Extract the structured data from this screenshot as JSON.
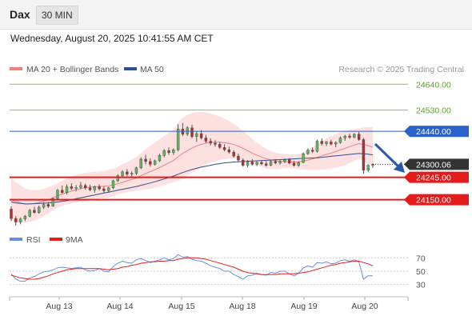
{
  "header": {
    "symbol": "Dax",
    "timeframe": "30 MIN",
    "datetime": "Wednesday, August 20, 2025 10:41:55 AM CET"
  },
  "colors": {
    "price_line": "#2a62c9",
    "resistance": "#86c25a",
    "support": "#e31b1b",
    "current": "#333333",
    "ma20": "#f08080",
    "ma50": "#2f4f8f",
    "bb_fill": "#fde0e0",
    "up_candle": "#5cb85c",
    "down_candle": "#b03030",
    "rsi": "#6a8fe0",
    "rsi_ma": "#e02020",
    "arrow": "#2a5aa8"
  },
  "chart_data": [
    {
      "type": "candlestick",
      "legend": [
        {
          "name": "MA 20 + Bollinger Bands",
          "color": "#f08080"
        },
        {
          "name": "MA 50",
          "color": "#2f4f8f"
        }
      ],
      "watermark": "Research © 2025 Trading Central",
      "x_ticks": [
        "Aug 13",
        "Aug 14",
        "Aug 15",
        "Aug 18",
        "Aug 19",
        "Aug 20"
      ],
      "ylim": [
        24040,
        24685
      ],
      "levels": [
        {
          "label": "24640.00",
          "value": 24640,
          "kind": "resistance"
        },
        {
          "label": "24530.00",
          "value": 24530,
          "kind": "resistance"
        },
        {
          "label": "24440.00",
          "value": 24440,
          "kind": "price"
        },
        {
          "label": "24300.06",
          "value": 24300.06,
          "kind": "current"
        },
        {
          "label": "24245.00",
          "value": 24245,
          "kind": "support"
        },
        {
          "label": "24150.00",
          "value": 24150,
          "kind": "support"
        }
      ],
      "ohlc": [
        [
          24110,
          24122,
          24060,
          24070
        ],
        [
          24070,
          24080,
          24040,
          24055
        ],
        [
          24055,
          24075,
          24045,
          24068
        ],
        [
          24068,
          24085,
          24060,
          24080
        ],
        [
          24080,
          24110,
          24075,
          24105
        ],
        [
          24105,
          24120,
          24090,
          24095
        ],
        [
          24095,
          24125,
          24090,
          24118
        ],
        [
          24118,
          24140,
          24110,
          24130
        ],
        [
          24130,
          24140,
          24115,
          24122
        ],
        [
          24122,
          24160,
          24120,
          24155
        ],
        [
          24155,
          24195,
          24150,
          24190
        ],
        [
          24190,
          24210,
          24175,
          24180
        ],
        [
          24180,
          24215,
          24172,
          24205
        ],
        [
          24205,
          24220,
          24190,
          24198
        ],
        [
          24198,
          24212,
          24185,
          24202
        ],
        [
          24202,
          24225,
          24195,
          24210
        ],
        [
          24210,
          24218,
          24192,
          24200
        ],
        [
          24200,
          24214,
          24186,
          24192
        ],
        [
          24192,
          24210,
          24180,
          24205
        ],
        [
          24205,
          24215,
          24190,
          24196
        ],
        [
          24196,
          24206,
          24180,
          24188
        ],
        [
          24188,
          24205,
          24180,
          24200
        ],
        [
          24200,
          24235,
          24195,
          24230
        ],
        [
          24230,
          24258,
          24225,
          24252
        ],
        [
          24252,
          24275,
          24242,
          24268
        ],
        [
          24268,
          24280,
          24250,
          24258
        ],
        [
          24258,
          24270,
          24245,
          24262
        ],
        [
          24262,
          24290,
          24255,
          24285
        ],
        [
          24285,
          24330,
          24280,
          24322
        ],
        [
          24322,
          24340,
          24300,
          24312
        ],
        [
          24312,
          24325,
          24290,
          24300
        ],
        [
          24300,
          24320,
          24295,
          24315
        ],
        [
          24315,
          24345,
          24310,
          24338
        ],
        [
          24338,
          24365,
          24330,
          24358
        ],
        [
          24358,
          24372,
          24340,
          24350
        ],
        [
          24350,
          24368,
          24340,
          24362
        ],
        [
          24362,
          24470,
          24355,
          24450
        ],
        [
          24450,
          24475,
          24420,
          24428
        ],
        [
          24428,
          24462,
          24420,
          24455
        ],
        [
          24455,
          24468,
          24410,
          24418
        ],
        [
          24418,
          24440,
          24395,
          24430
        ],
        [
          24430,
          24445,
          24405,
          24412
        ],
        [
          24412,
          24425,
          24390,
          24398
        ],
        [
          24398,
          24410,
          24380,
          24390
        ],
        [
          24390,
          24402,
          24375,
          24385
        ],
        [
          24385,
          24395,
          24365,
          24372
        ],
        [
          24372,
          24385,
          24355,
          24362
        ],
        [
          24362,
          24375,
          24345,
          24352
        ],
        [
          24352,
          24360,
          24328,
          24335
        ],
        [
          24335,
          24345,
          24310,
          24318
        ],
        [
          24318,
          24325,
          24290,
          24296
        ],
        [
          24296,
          24318,
          24288,
          24310
        ],
        [
          24310,
          24322,
          24295,
          24300
        ],
        [
          24300,
          24316,
          24292,
          24308
        ],
        [
          24308,
          24318,
          24296,
          24302
        ],
        [
          24302,
          24314,
          24290,
          24296
        ],
        [
          24296,
          24318,
          24292,
          24312
        ],
        [
          24312,
          24322,
          24300,
          24306
        ],
        [
          24306,
          24318,
          24298,
          24312
        ],
        [
          24312,
          24325,
          24305,
          24320
        ],
        [
          24320,
          24326,
          24300,
          24305
        ],
        [
          24305,
          24315,
          24290,
          24296
        ],
        [
          24296,
          24312,
          24290,
          24308
        ],
        [
          24308,
          24350,
          24305,
          24345
        ],
        [
          24345,
          24368,
          24340,
          24360
        ],
        [
          24360,
          24372,
          24348,
          24355
        ],
        [
          24355,
          24405,
          24350,
          24398
        ],
        [
          24398,
          24410,
          24380,
          24388
        ],
        [
          24388,
          24400,
          24378,
          24395
        ],
        [
          24395,
          24405,
          24380,
          24386
        ],
        [
          24386,
          24398,
          24372,
          24392
        ],
        [
          24392,
          24418,
          24388,
          24412
        ],
        [
          24412,
          24425,
          24400,
          24420
        ],
        [
          24420,
          24430,
          24408,
          24415
        ],
        [
          24415,
          24432,
          24410,
          24428
        ],
        [
          24428,
          24438,
          24400,
          24405
        ],
        [
          24405,
          24412,
          24260,
          24275
        ],
        [
          24275,
          24300,
          24268,
          24296
        ],
        [
          24296,
          24305,
          24285,
          24300
        ]
      ],
      "ma20": [
        24150,
        24142,
        24136,
        24132,
        24132,
        24134,
        24138,
        24144,
        24150,
        24158,
        24166,
        24173,
        24180,
        24186,
        24192,
        24197,
        24201,
        24203,
        24205,
        24206,
        24207,
        24209,
        24213,
        24218,
        24224,
        24230,
        24236,
        24243,
        24252,
        24261,
        24269,
        24277,
        24286,
        24296,
        24306,
        24316,
        24332,
        24346,
        24358,
        24369,
        24378,
        24385,
        24390,
        24393,
        24394,
        24394,
        24392,
        24389,
        24384,
        24377,
        24368,
        24358,
        24348,
        24339,
        24331,
        24324,
        24319,
        24315,
        24313,
        24312,
        24311,
        24310,
        24311,
        24314,
        24318,
        24323,
        24330,
        24336,
        24342,
        24348,
        24354,
        24361,
        24368,
        24375,
        24382,
        24388,
        24384,
        24379,
        24372
      ],
      "bb_upper": [
        24240,
        24225,
        24210,
        24198,
        24192,
        24190,
        24192,
        24196,
        24202,
        24210,
        24220,
        24230,
        24240,
        24248,
        24255,
        24260,
        24264,
        24266,
        24268,
        24270,
        24272,
        24276,
        24282,
        24290,
        24300,
        24310,
        24320,
        24332,
        24348,
        24364,
        24378,
        24392,
        24406,
        24420,
        24434,
        24446,
        24478,
        24498,
        24510,
        24518,
        24522,
        24522,
        24520,
        24516,
        24510,
        24502,
        24494,
        24484,
        24472,
        24458,
        24442,
        24425,
        24408,
        24392,
        24378,
        24366,
        24356,
        24350,
        24346,
        24344,
        24342,
        24342,
        24344,
        24350,
        24360,
        24372,
        24386,
        24398,
        24410,
        24420,
        24428,
        24436,
        24442,
        24446,
        24450,
        24452,
        24456,
        24458,
        24458
      ],
      "bb_lower": [
        24060,
        24055,
        24052,
        24052,
        24056,
        24062,
        24070,
        24080,
        24092,
        24106,
        24116,
        24124,
        24130,
        24134,
        24138,
        24142,
        24146,
        24150,
        24152,
        24154,
        24156,
        24160,
        24166,
        24172,
        24178,
        24182,
        24186,
        24190,
        24192,
        24194,
        24196,
        24200,
        24206,
        24212,
        24218,
        24224,
        24230,
        24240,
        24252,
        24264,
        24276,
        24288,
        24298,
        24306,
        24312,
        24318,
        24322,
        24324,
        24324,
        24322,
        24318,
        24312,
        24304,
        24296,
        24288,
        24282,
        24280,
        24280,
        24282,
        24284,
        24284,
        24282,
        24280,
        24278,
        24276,
        24276,
        24276,
        24278,
        24280,
        24282,
        24286,
        24290,
        24296,
        24304,
        24314,
        24324,
        24312,
        24300,
        24286
      ],
      "ma50": [
        24140,
        24136,
        24134,
        24132,
        24132,
        24133,
        24134,
        24135,
        24136,
        24138,
        24140,
        24143,
        24146,
        24150,
        24154,
        24158,
        24162,
        24166,
        24170,
        24174,
        24178,
        24182,
        24186,
        24190,
        24194,
        24198,
        24202,
        24206,
        24211,
        24216,
        24221,
        24226,
        24232,
        24238,
        24244,
        24250,
        24258,
        24265,
        24272,
        24278,
        24283,
        24288,
        24292,
        24296,
        24300,
        24303,
        24306,
        24308,
        24310,
        24311,
        24312,
        24313,
        24314,
        24315,
        24316,
        24317,
        24318,
        24319,
        24320,
        24321,
        24322,
        24323,
        24324,
        24325,
        24326,
        24327,
        24328,
        24330,
        24332,
        24334,
        24336,
        24338,
        24340,
        24342,
        24344,
        24346,
        24345,
        24343,
        24340
      ]
    },
    {
      "type": "line",
      "legend": [
        {
          "name": "RSI",
          "color": "#6a8fe0"
        },
        {
          "name": "9MA",
          "color": "#e02020"
        }
      ],
      "y_ticks": [
        70,
        50,
        30
      ],
      "ylim": [
        20,
        80
      ],
      "series": [
        {
          "name": "RSI",
          "values": [
            46,
            38,
            35,
            35,
            40,
            42,
            46,
            49,
            50,
            52,
            55,
            56,
            55,
            54,
            55,
            56,
            52,
            50,
            51,
            54,
            50,
            49,
            57,
            62,
            65,
            63,
            62,
            67,
            69,
            66,
            63,
            65,
            67,
            70,
            67,
            69,
            75,
            71,
            72,
            68,
            66,
            65,
            62,
            58,
            56,
            54,
            50,
            50,
            45,
            42,
            38,
            43,
            44,
            47,
            45,
            44,
            48,
            47,
            50,
            50,
            46,
            43,
            47,
            55,
            58,
            56,
            63,
            62,
            64,
            61,
            62,
            66,
            67,
            65,
            67,
            64,
            38,
            43,
            43
          ]
        },
        {
          "name": "9MA",
          "values": [
            44,
            42,
            40,
            39,
            38,
            38,
            39,
            41,
            43,
            46,
            48,
            50,
            52,
            53,
            54,
            54,
            54,
            54,
            54,
            54,
            53,
            52,
            53,
            54,
            56,
            57,
            59,
            60,
            62,
            63,
            64,
            64,
            65,
            65,
            66,
            66,
            68,
            69,
            70,
            70,
            70,
            69,
            68,
            66,
            64,
            62,
            60,
            58,
            56,
            53,
            50,
            48,
            47,
            46,
            45,
            45,
            45,
            45,
            46,
            46,
            46,
            46,
            47,
            48,
            49,
            51,
            53,
            55,
            57,
            59,
            60,
            62,
            63,
            64,
            65,
            65,
            63,
            61,
            58
          ]
        }
      ]
    }
  ]
}
